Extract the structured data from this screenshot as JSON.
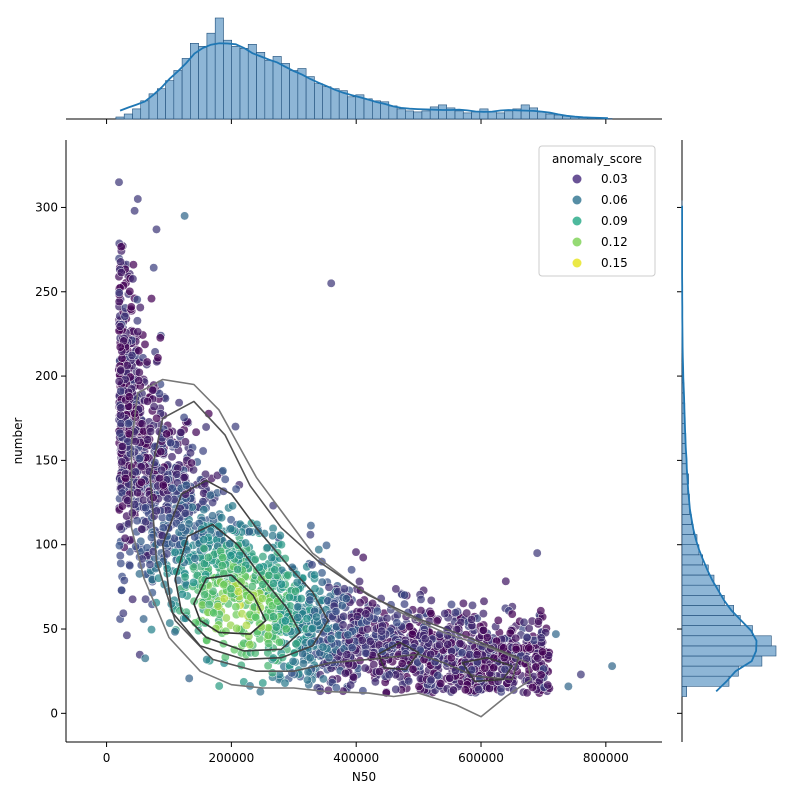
{
  "chart_data": {
    "type": "scatter",
    "subtype": "jointplot",
    "xlabel": "N50",
    "ylabel": "number",
    "xlim": [
      -65000,
      890000
    ],
    "ylim": [
      -17,
      340
    ],
    "xticks": [
      0,
      200000,
      400000,
      600000,
      800000
    ],
    "yticks": [
      0,
      50,
      100,
      150,
      200,
      250,
      300
    ],
    "grid": false,
    "legend": {
      "title": "anomaly_score",
      "placement": "top-right",
      "entries": [
        {
          "label": "0.03",
          "color": "#45287c"
        },
        {
          "label": "0.06",
          "color": "#2c728e"
        },
        {
          "label": "0.09",
          "color": "#22a884"
        },
        {
          "label": "0.12",
          "color": "#7ad151"
        },
        {
          "label": "0.15",
          "color": "#e6e419"
        }
      ]
    },
    "color_scale": [
      "#440154",
      "#3b528b",
      "#21918c",
      "#5ec962",
      "#fde725"
    ],
    "marginal_x_hist_relative": [
      0.02,
      0.05,
      0.1,
      0.18,
      0.25,
      0.3,
      0.38,
      0.48,
      0.6,
      0.75,
      0.72,
      0.85,
      1.0,
      0.78,
      0.72,
      0.7,
      0.74,
      0.66,
      0.58,
      0.62,
      0.55,
      0.48,
      0.5,
      0.42,
      0.35,
      0.32,
      0.3,
      0.28,
      0.22,
      0.24,
      0.2,
      0.18,
      0.17,
      0.13,
      0.1,
      0.08,
      0.07,
      0.08,
      0.12,
      0.14,
      0.11,
      0.08,
      0.06,
      0.07,
      0.1,
      0.07,
      0.06,
      0.08,
      0.1,
      0.14,
      0.11,
      0.07,
      0.05,
      0.04,
      0.03,
      0.02,
      0.015,
      0.01,
      0.005,
      0.005
    ],
    "marginal_y_hist_relative": [
      0.05,
      0.5,
      0.6,
      0.85,
      1.0,
      0.95,
      0.75,
      0.62,
      0.55,
      0.45,
      0.4,
      0.34,
      0.28,
      0.22,
      0.18,
      0.16,
      0.12,
      0.1,
      0.08,
      0.08,
      0.06,
      0.07,
      0.05,
      0.05,
      0.04,
      0.04,
      0.03,
      0.03,
      0.03,
      0.02,
      0.02,
      0.015,
      0.01,
      0.01,
      0.005,
      0.005,
      0.005,
      0.003,
      0.003,
      0.002,
      0.002,
      0.002,
      0.001,
      0.001,
      0.001,
      0.001,
      0.001,
      0.001,
      0.001
    ],
    "notable_points": [
      {
        "x": 20000,
        "y": 315,
        "score": 0.03
      },
      {
        "x": 50000,
        "y": 305,
        "score": 0.03
      },
      {
        "x": 45000,
        "y": 298,
        "score": 0.03
      },
      {
        "x": 125000,
        "y": 295,
        "score": 0.06
      },
      {
        "x": 80000,
        "y": 287,
        "score": 0.03
      },
      {
        "x": 360000,
        "y": 255,
        "score": 0.03
      },
      {
        "x": 690000,
        "y": 95,
        "score": 0.03
      },
      {
        "x": 810000,
        "y": 28,
        "score": 0.06
      },
      {
        "x": 760000,
        "y": 23,
        "score": 0.03
      },
      {
        "x": 740000,
        "y": 16,
        "score": 0.06
      },
      {
        "x": 720000,
        "y": 47,
        "score": 0.06
      }
    ]
  }
}
